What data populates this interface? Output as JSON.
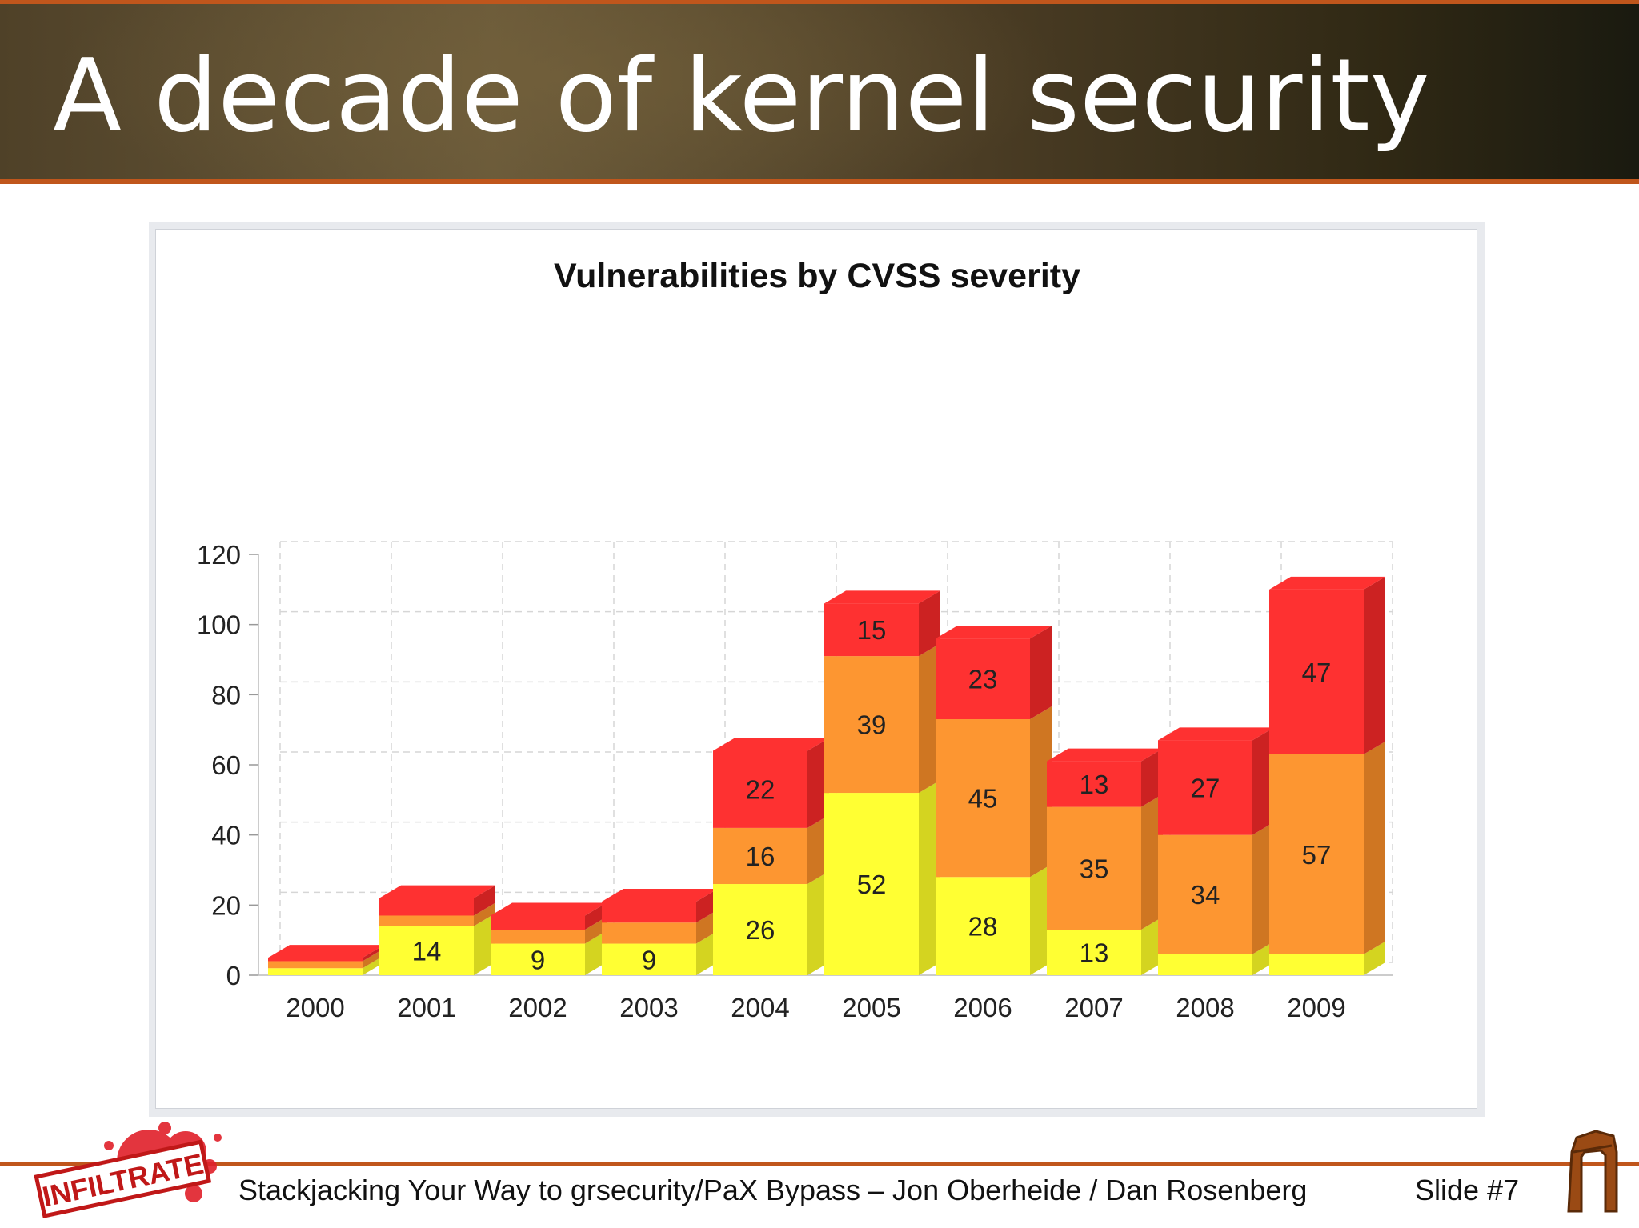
{
  "slide": {
    "title": "A decade of kernel security",
    "footer": "Stackjacking Your Way to grsecurity/PaX Bypass – Jon Oberheide / Dan Rosenberg",
    "slide_number": "Slide #7",
    "logo_text": "INFILTRATE",
    "logo_icon": "infiltrate-logo",
    "corner_icon": "stone-arch-icon"
  },
  "chart_data": {
    "type": "bar",
    "stacked": true,
    "style": "3d",
    "title": "Vulnerabilities by CVSS severity",
    "xlabel": "",
    "ylabel": "",
    "categories": [
      "2000",
      "2001",
      "2002",
      "2003",
      "2004",
      "2005",
      "2006",
      "2007",
      "2008",
      "2009"
    ],
    "series": [
      {
        "color": "#ffff33",
        "side_color": "#d4d420",
        "values": [
          2,
          14,
          9,
          9,
          26,
          52,
          28,
          13,
          6,
          6
        ],
        "labels": [
          "",
          "14",
          "9",
          "9",
          "26",
          "52",
          "28",
          "13",
          "",
          ""
        ]
      },
      {
        "color": "#fd9631",
        "side_color": "#cf7622",
        "values": [
          2,
          3,
          4,
          6,
          16,
          39,
          45,
          35,
          34,
          57
        ],
        "labels": [
          "",
          "",
          "",
          "",
          "16",
          "39",
          "45",
          "35",
          "34",
          "57"
        ]
      },
      {
        "color": "#fe3131",
        "side_color": "#cc2222",
        "values": [
          1,
          5,
          4,
          6,
          22,
          15,
          23,
          13,
          27,
          47
        ],
        "labels": [
          "",
          "",
          "",
          "",
          "22",
          "15",
          "23",
          "13",
          "27",
          "47"
        ]
      }
    ],
    "ylim": [
      0,
      120
    ],
    "yticks": [
      0,
      20,
      40,
      60,
      80,
      100,
      120
    ],
    "grid": true,
    "legend": "none"
  }
}
